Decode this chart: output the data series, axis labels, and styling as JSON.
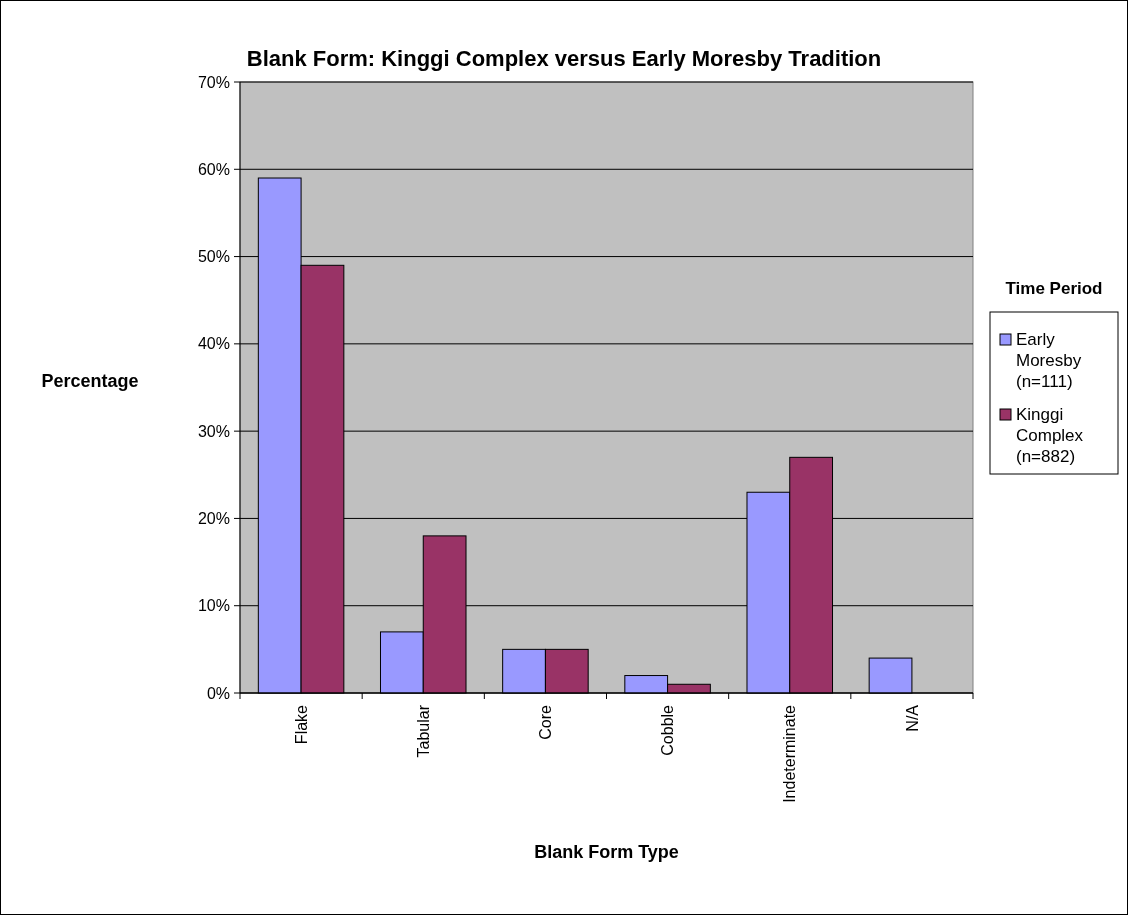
{
  "chart_data": {
    "type": "bar",
    "title": "Blank Form: Kinggi Complex versus Early Moresby Tradition",
    "xlabel": "Blank Form Type",
    "ylabel": "Percentage",
    "legend_title": "Time Period",
    "categories": [
      "Flake",
      "Tabular",
      "Core",
      "Cobble",
      "Indeterminate",
      "N/A"
    ],
    "series": [
      {
        "name": "Early Moresby (n=111)",
        "color": "#9999ff",
        "values": [
          59,
          7,
          5,
          2,
          23,
          4
        ]
      },
      {
        "name": "Kinggi Complex (n=882)",
        "color": "#993366",
        "values": [
          49,
          18,
          5,
          1,
          27,
          0
        ]
      }
    ],
    "ylim": [
      0,
      70
    ],
    "yticks": [
      {
        "value": 0,
        "label": "0%"
      },
      {
        "value": 10,
        "label": "10%"
      },
      {
        "value": 20,
        "label": "20%"
      },
      {
        "value": 30,
        "label": "30%"
      },
      {
        "value": 40,
        "label": "40%"
      },
      {
        "value": 50,
        "label": "50%"
      },
      {
        "value": 60,
        "label": "60%"
      },
      {
        "value": 70,
        "label": "70%"
      }
    ],
    "grid": "y",
    "legend": "right"
  }
}
